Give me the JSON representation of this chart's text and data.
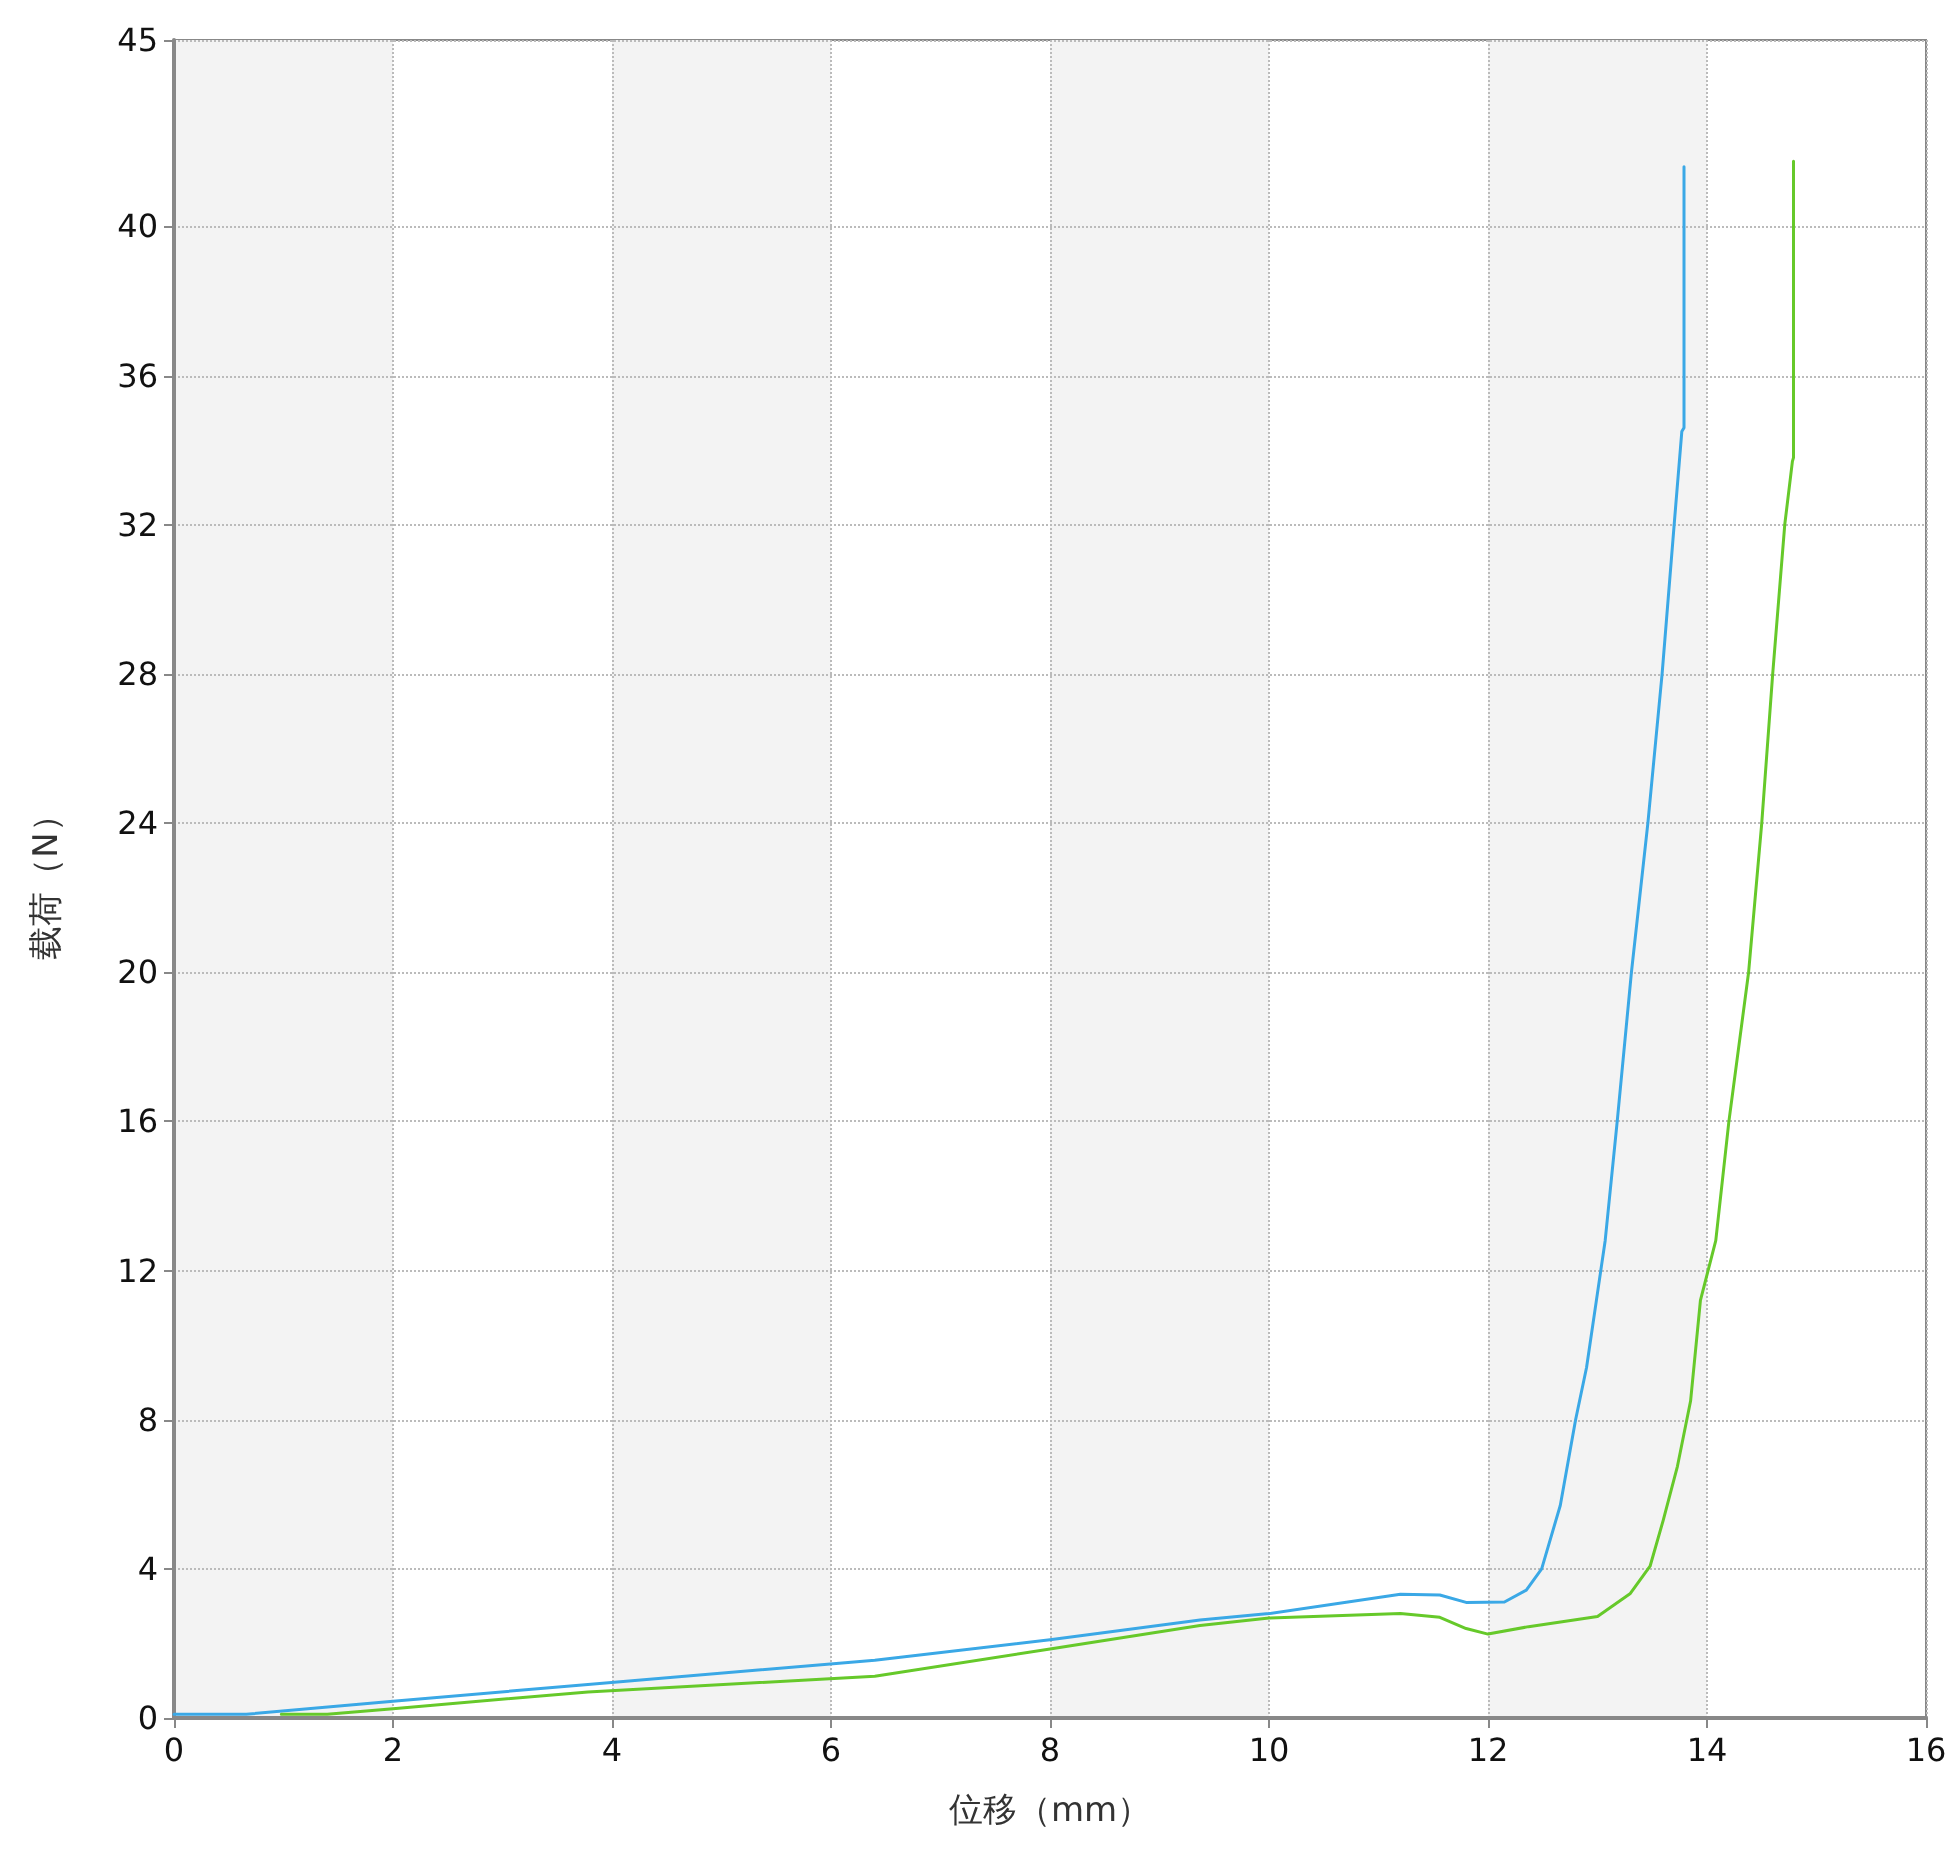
{
  "chart_data": {
    "type": "line",
    "xlabel": "位移（mm）",
    "ylabel": "载荷（N）",
    "xlim": [
      0,
      16
    ],
    "xticks": [
      0,
      2,
      4,
      6,
      8,
      10,
      12,
      14,
      16
    ],
    "ylim": [
      0,
      45
    ],
    "yticks": [
      0,
      4,
      8,
      12,
      16,
      20,
      24,
      28,
      32,
      36,
      40,
      45
    ],
    "grid": true,
    "marker": "none",
    "line_style": "solid",
    "bands": [
      {
        "axis": "x",
        "from": 0,
        "to": 2,
        "color": "#f3f3f3"
      },
      {
        "axis": "x",
        "from": 4,
        "to": 6,
        "color": "#f3f3f3"
      },
      {
        "axis": "x",
        "from": 8,
        "to": 10,
        "color": "#f3f3f3"
      },
      {
        "axis": "x",
        "from": 12,
        "to": 14,
        "color": "#f3f3f3"
      }
    ],
    "series": [
      {
        "color": "#3aa8e6",
        "x": [
          0,
          0.66,
          2,
          3.78,
          6.4,
          8,
          9.37,
          10,
          11.2,
          11.56,
          11.8,
          12.15,
          12.35,
          12.49,
          12.66,
          12.8,
          12.9,
          12.99,
          13.07,
          13.18,
          13.31,
          13.46,
          13.59,
          13.7,
          13.77,
          13.79,
          13.79
        ],
        "values": [
          0.1,
          0.1,
          0.45,
          0.9,
          1.55,
          2.1,
          2.63,
          2.8,
          3.32,
          3.3,
          3.1,
          3.11,
          3.43,
          4.0,
          5.7,
          8.0,
          9.4,
          11.2,
          12.8,
          16,
          20,
          24,
          28,
          32,
          34.5,
          34.6,
          41.6
        ]
      },
      {
        "color": "#66c92a",
        "x": [
          0.98,
          1.4,
          2,
          3.78,
          6.4,
          8,
          9.37,
          10,
          11.2,
          11.56,
          11.8,
          12.0,
          12.37,
          13.0,
          13.3,
          13.48,
          13.6,
          13.73,
          13.85,
          13.94,
          14.08,
          14.2,
          14.38,
          14.5,
          14.6,
          14.71,
          14.78,
          14.79,
          14.79
        ],
        "values": [
          0.1,
          0.1,
          0.25,
          0.7,
          1.12,
          1.85,
          2.48,
          2.68,
          2.8,
          2.7,
          2.4,
          2.25,
          2.45,
          2.72,
          3.34,
          4.07,
          5.3,
          6.75,
          8.5,
          11.2,
          12.8,
          16,
          20,
          24,
          28,
          32,
          33.7,
          33.8,
          41.75
        ]
      }
    ]
  }
}
